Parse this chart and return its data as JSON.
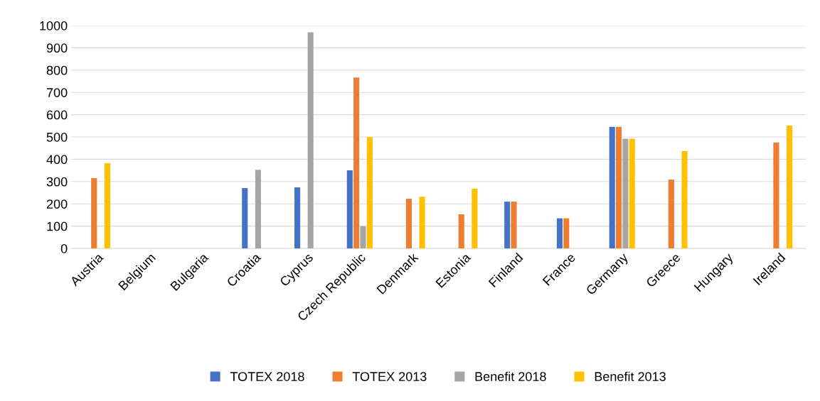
{
  "chart_data": {
    "type": "bar",
    "categories": [
      "Austria",
      "Belgium",
      "Bulgaria",
      "Croatia",
      "Cyprus",
      "Czech Republic",
      "Denmark",
      "Estonia",
      "Finland",
      "France",
      "Germany",
      "Greece",
      "Hungary",
      "Ireland"
    ],
    "series": [
      {
        "name": "TOTEX 2018",
        "color": "#4472c4",
        "values": [
          null,
          null,
          null,
          271,
          274,
          350,
          null,
          null,
          210,
          135,
          545,
          null,
          null,
          null
        ]
      },
      {
        "name": "TOTEX 2013",
        "color": "#ed7d31",
        "values": [
          315,
          null,
          null,
          null,
          null,
          767,
          223,
          153,
          210,
          135,
          545,
          309,
          null,
          475
        ]
      },
      {
        "name": "Benefit 2018",
        "color": "#a5a5a5",
        "values": [
          null,
          null,
          null,
          353,
          970,
          100,
          null,
          null,
          null,
          null,
          492,
          null,
          null,
          null
        ]
      },
      {
        "name": "Benefit 2013",
        "color": "#ffc000",
        "values": [
          382,
          null,
          null,
          null,
          null,
          500,
          232,
          268,
          null,
          null,
          492,
          436,
          null,
          551
        ]
      }
    ],
    "ylim": [
      0,
      1000
    ],
    "yticks": [
      0,
      100,
      200,
      300,
      400,
      500,
      600,
      700,
      800,
      900,
      1000
    ],
    "grid": "y",
    "legend": "bottom"
  }
}
